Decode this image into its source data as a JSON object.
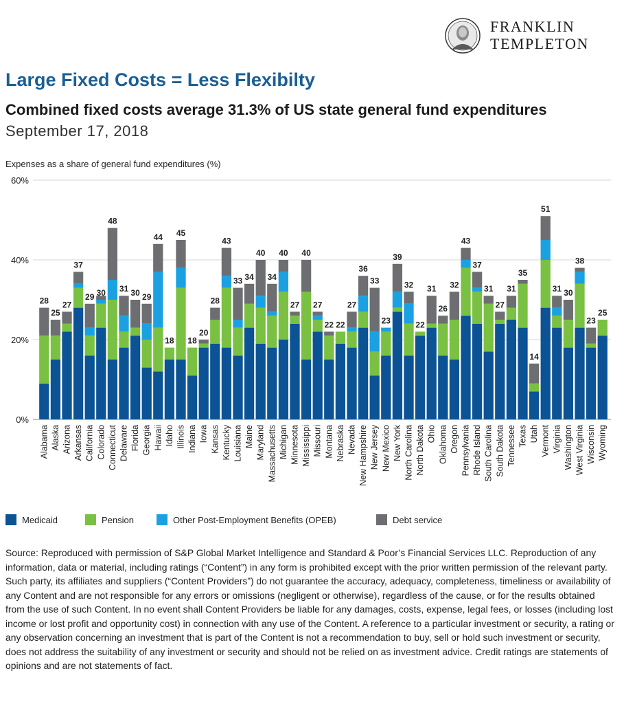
{
  "brand": {
    "line1": "FRANKLIN",
    "line2": "TEMPLETON"
  },
  "header": {
    "title": "Large Fixed Costs = Less Flexibilty",
    "subtitle": "Combined fixed costs average 31.3% of US state general fund expenditures",
    "date": "September 17, 2018"
  },
  "chart_data": {
    "type": "bar",
    "stacked": true,
    "ylabel": "Expenses as a share of general fund expenditures (%)",
    "ylim": [
      0,
      60
    ],
    "yticks": [
      "0%",
      "20%",
      "40%",
      "60%"
    ],
    "ytick_values": [
      0,
      20,
      40,
      60
    ],
    "grid": true,
    "legend_position": "bottom",
    "categories": [
      "Alabama",
      "Alaska",
      "Arizona",
      "Arkansas",
      "California",
      "Colorado",
      "Connecticut",
      "Delaware",
      "Florida",
      "Georgia",
      "Hawaii",
      "Idaho",
      "Illinois",
      "Indiana",
      "Iowa",
      "Kansas",
      "Kentucky",
      "Louisiana",
      "Maine",
      "Maryland",
      "Massachusetts",
      "Michigan",
      "Minnesota",
      "Mississippi",
      "Missouri",
      "Montana",
      "Nebraska",
      "Nevada",
      "New Hampshire",
      "New Jersey",
      "New Mexico",
      "New York",
      "North Carolina",
      "North Dakota",
      "Ohio",
      "Oklahoma",
      "Oregon",
      "Pennsylvania",
      "Rhode Island",
      "South Carolina",
      "South Dakota",
      "Tennessee",
      "Texas",
      "Utah",
      "Vermont",
      "Virginia",
      "Washington",
      "West Virginia",
      "Wisconsin",
      "Wyoming"
    ],
    "series": [
      {
        "name": "Medicaid",
        "color": "#0b5394",
        "values": [
          9,
          15,
          22,
          28,
          16,
          23,
          15,
          18,
          21,
          13,
          12,
          15,
          15,
          11,
          18,
          19,
          18,
          16,
          23,
          19,
          18,
          20,
          24,
          15,
          22,
          15,
          19,
          18,
          23,
          11,
          16,
          27,
          16,
          21,
          23,
          16,
          15,
          26,
          24,
          17,
          24,
          25,
          23,
          7,
          28,
          23,
          18,
          23,
          18,
          21
        ]
      },
      {
        "name": "Pension",
        "color": "#7ac143",
        "values": [
          12,
          6,
          2,
          5,
          5,
          6,
          15,
          4,
          2,
          7,
          11,
          3,
          18,
          7,
          1,
          6,
          15,
          7,
          6,
          9,
          8,
          12,
          2,
          17,
          3,
          6,
          3,
          4,
          4,
          6,
          6,
          1,
          8,
          1,
          1,
          8,
          10,
          12,
          8,
          12,
          1,
          3,
          11,
          2,
          12,
          3,
          7,
          11,
          1,
          4
        ]
      },
      {
        "name": "Other Post-Employment Benefits (OPEB)",
        "color": "#1ba1e2",
        "values": [
          0,
          0,
          0,
          1,
          2,
          1,
          5,
          4,
          0,
          4,
          14,
          0,
          5,
          0,
          0,
          0,
          3,
          2,
          0,
          3,
          1,
          5,
          0,
          0,
          1,
          0,
          0,
          1,
          4,
          5,
          1,
          4,
          5,
          0,
          0,
          0,
          0,
          2,
          1,
          0,
          0,
          0,
          0,
          0,
          5,
          2,
          0,
          3,
          0,
          0
        ]
      },
      {
        "name": "Debt service",
        "color": "#6d6e71",
        "values": [
          7,
          4,
          3,
          3,
          6,
          1,
          13,
          5,
          7,
          5,
          7,
          0,
          7,
          0,
          1,
          3,
          7,
          8,
          5,
          9,
          7,
          3,
          1,
          8,
          1,
          1,
          0,
          4,
          5,
          11,
          0,
          7,
          3,
          0,
          7,
          2,
          7,
          3,
          4,
          2,
          2,
          3,
          1,
          5,
          6,
          3,
          5,
          1,
          4,
          0
        ]
      }
    ],
    "totals": [
      28,
      25,
      27,
      37,
      29,
      30,
      48,
      31,
      30,
      29,
      44,
      18,
      45,
      18,
      20,
      28,
      43,
      33,
      34,
      40,
      34,
      40,
      27,
      40,
      27,
      22,
      22,
      27,
      36,
      33,
      23,
      39,
      32,
      22,
      31,
      26,
      32,
      43,
      37,
      31,
      27,
      31,
      35,
      14,
      51,
      31,
      30,
      38,
      23,
      25
    ]
  },
  "source_text": "Source: Reproduced with permission of S&P Global Market Intelligence and Standard & Poor’s Financial Services LLC. Reproduction of any information, data or material, including ratings (“Content”) in any form is prohibited except with the prior written permission of the relevant party. Such party, its affiliates and suppliers (“Content Providers”) do not guarantee the accuracy, adequacy, completeness, timeliness or availability of any Content and are not responsible for any errors or omissions (negligent or otherwise), regardless of the cause, or for the results obtained from the use of such Content. In no event shall Content Providers be liable for any damages, costs, expense, legal fees, or losses (including lost income or lost profit and opportunity cost) in connection with any use of the Content. A reference to a particular investment or security, a rating or any observation concerning an investment that is part of the Content is not a recommendation to buy, sell or hold such investment or security, does not address the suitability of any investment or security and should not be relied on as investment advice. Credit ratings are statements of opinions and are not statements of fact."
}
